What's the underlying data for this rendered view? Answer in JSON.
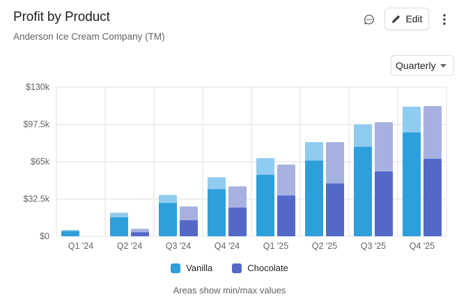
{
  "header": {
    "title": "Profit by Product",
    "subtitle": "Anderson Ice Cream Company (TM)",
    "edit_label": "Edit",
    "comment_icon": "comment-icon",
    "edit_icon": "pencil-icon",
    "more_icon": "more-vertical-icon"
  },
  "controls": {
    "period_value": "Quarterly",
    "period_icon": "caret-down-icon"
  },
  "note": "Areas show min/max values",
  "colors": {
    "vanilla": "#2e9fdb",
    "vanilla_range": "#8fccf0",
    "chocolate": "#5469c7",
    "chocolate_range": "#a7b1e0",
    "grid": "#e0e0e0"
  },
  "chart_data": {
    "type": "bar",
    "categories": [
      "Q1 '24",
      "Q2 '24",
      "Q3 '24",
      "Q4 '24",
      "Q1 '25",
      "Q2 '25",
      "Q3 '25",
      "Q4 '25"
    ],
    "ylim": [
      0,
      130000
    ],
    "yticks": [
      0,
      32500,
      65000,
      97500,
      130000
    ],
    "ytick_labels": [
      "$0",
      "$32.5k",
      "$65k",
      "$97.5k",
      "$130k"
    ],
    "grid": true,
    "legend": "bottom-center",
    "series": [
      {
        "name": "Vanilla",
        "values": [
          4500,
          16500,
          29000,
          41000,
          53500,
          66000,
          78000,
          90500
        ],
        "max": [
          5500,
          20500,
          36000,
          51500,
          68000,
          82000,
          97500,
          113000
        ]
      },
      {
        "name": "Chocolate",
        "values": [
          0,
          3500,
          14000,
          25000,
          35500,
          46000,
          56500,
          67500
        ],
        "max": [
          0,
          6500,
          26000,
          43500,
          62500,
          82000,
          99500,
          113500
        ]
      }
    ]
  }
}
